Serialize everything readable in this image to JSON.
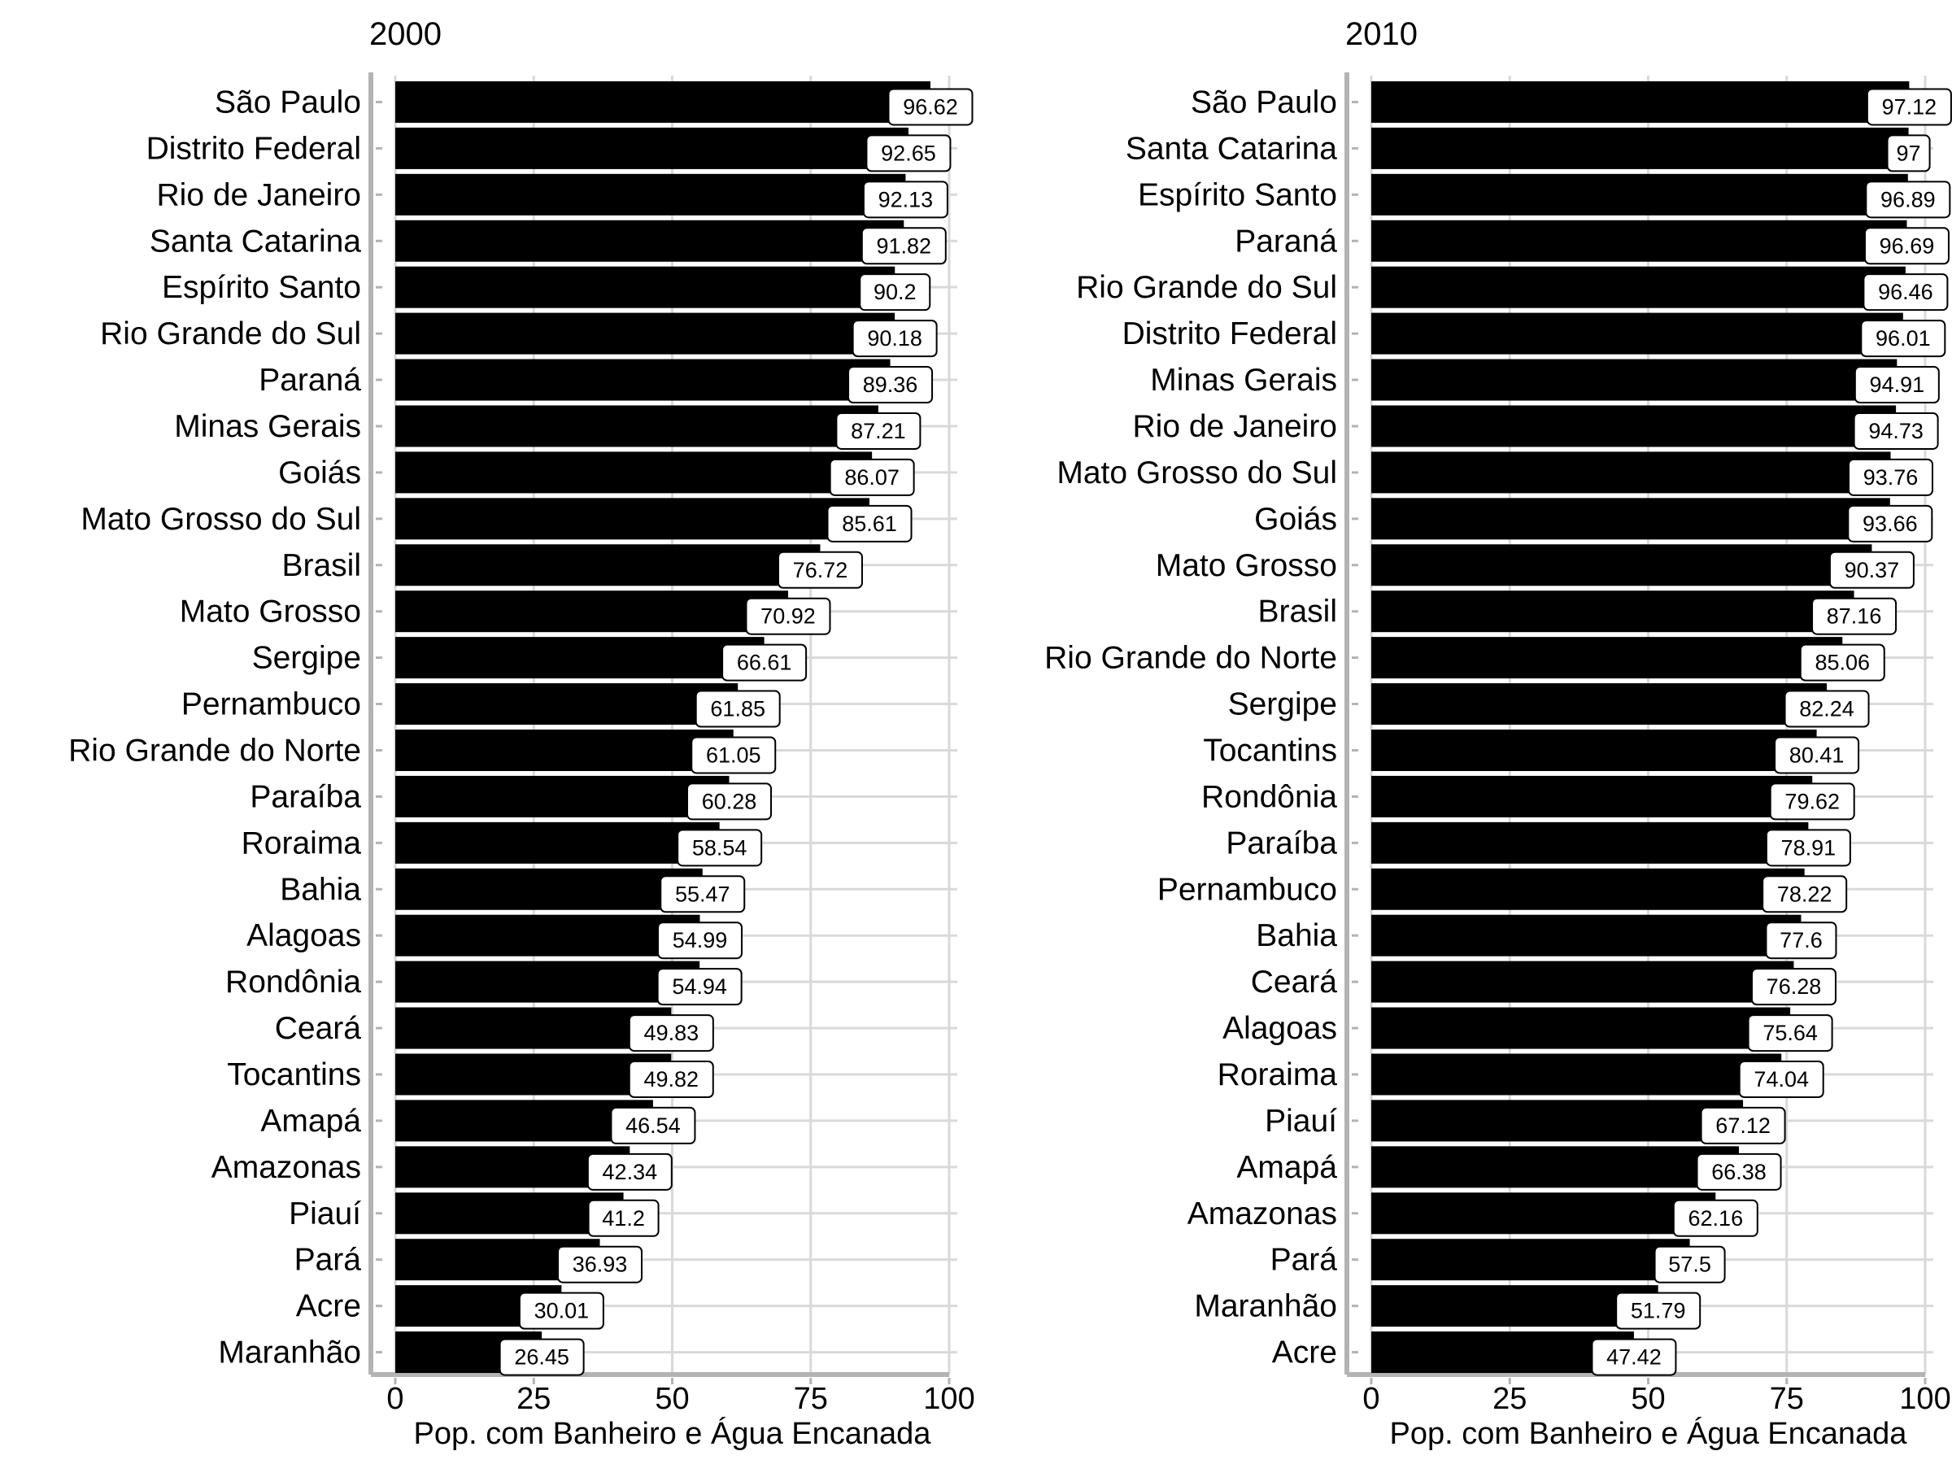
{
  "chart_data": [
    {
      "type": "bar",
      "orientation": "horizontal",
      "title": "2000",
      "xlabel": "Pop. com Banheiro e Água Encanada",
      "ylabel": "",
      "xlim": [
        0,
        100
      ],
      "xticks": [
        "0",
        "25",
        "50",
        "75",
        "100"
      ],
      "grid": true,
      "bar_color": "#000000",
      "categories": [
        "São Paulo",
        "Distrito Federal",
        "Rio de Janeiro",
        "Santa Catarina",
        "Espírito Santo",
        "Rio Grande do Sul",
        "Paraná",
        "Minas Gerais",
        "Goiás",
        "Mato Grosso do Sul",
        "Brasil",
        "Mato Grosso",
        "Sergipe",
        "Pernambuco",
        "Rio Grande do Norte",
        "Paraíba",
        "Roraima",
        "Bahia",
        "Alagoas",
        "Rondônia",
        "Ceará",
        "Tocantins",
        "Amapá",
        "Amazonas",
        "Piauí",
        "Pará",
        "Acre",
        "Maranhão"
      ],
      "values": [
        96.62,
        92.65,
        92.13,
        91.82,
        90.2,
        90.18,
        89.36,
        87.21,
        86.07,
        85.61,
        76.72,
        70.92,
        66.61,
        61.85,
        61.05,
        60.28,
        58.54,
        55.47,
        54.99,
        54.94,
        49.83,
        49.82,
        46.54,
        42.34,
        41.2,
        36.93,
        30.01,
        26.45
      ],
      "labels": [
        "96.62",
        "92.65",
        "92.13",
        "91.82",
        "90.2",
        "90.18",
        "89.36",
        "87.21",
        "86.07",
        "85.61",
        "76.72",
        "70.92",
        "66.61",
        "61.85",
        "61.05",
        "60.28",
        "58.54",
        "55.47",
        "54.99",
        "54.94",
        "49.83",
        "49.82",
        "46.54",
        "42.34",
        "41.2",
        "36.93",
        "30.01",
        "26.45"
      ]
    },
    {
      "type": "bar",
      "orientation": "horizontal",
      "title": "2010",
      "xlabel": "Pop. com Banheiro e Água Encanada",
      "ylabel": "",
      "xlim": [
        0,
        100
      ],
      "xticks": [
        "0",
        "25",
        "50",
        "75",
        "100"
      ],
      "grid": true,
      "bar_color": "#000000",
      "categories": [
        "São Paulo",
        "Santa Catarina",
        "Espírito Santo",
        "Paraná",
        "Rio Grande do Sul",
        "Distrito Federal",
        "Minas Gerais",
        "Rio de Janeiro",
        "Mato Grosso do Sul",
        "Goiás",
        "Mato Grosso",
        "Brasil",
        "Rio Grande do Norte",
        "Sergipe",
        "Tocantins",
        "Rondônia",
        "Paraíba",
        "Pernambuco",
        "Bahia",
        "Ceará",
        "Alagoas",
        "Roraima",
        "Piauí",
        "Amapá",
        "Amazonas",
        "Pará",
        "Maranhão",
        "Acre"
      ],
      "values": [
        97.12,
        97,
        96.89,
        96.69,
        96.46,
        96.01,
        94.91,
        94.73,
        93.76,
        93.66,
        90.37,
        87.16,
        85.06,
        82.24,
        80.41,
        79.62,
        78.91,
        78.22,
        77.6,
        76.28,
        75.64,
        74.04,
        67.12,
        66.38,
        62.16,
        57.5,
        51.79,
        47.42
      ],
      "labels": [
        "97.12",
        "97",
        "96.89",
        "96.69",
        "96.46",
        "96.01",
        "94.91",
        "94.73",
        "93.76",
        "93.66",
        "90.37",
        "87.16",
        "85.06",
        "82.24",
        "80.41",
        "79.62",
        "78.91",
        "78.22",
        "77.6",
        "76.28",
        "75.64",
        "74.04",
        "67.12",
        "66.38",
        "62.16",
        "57.5",
        "51.79",
        "47.42"
      ]
    }
  ]
}
